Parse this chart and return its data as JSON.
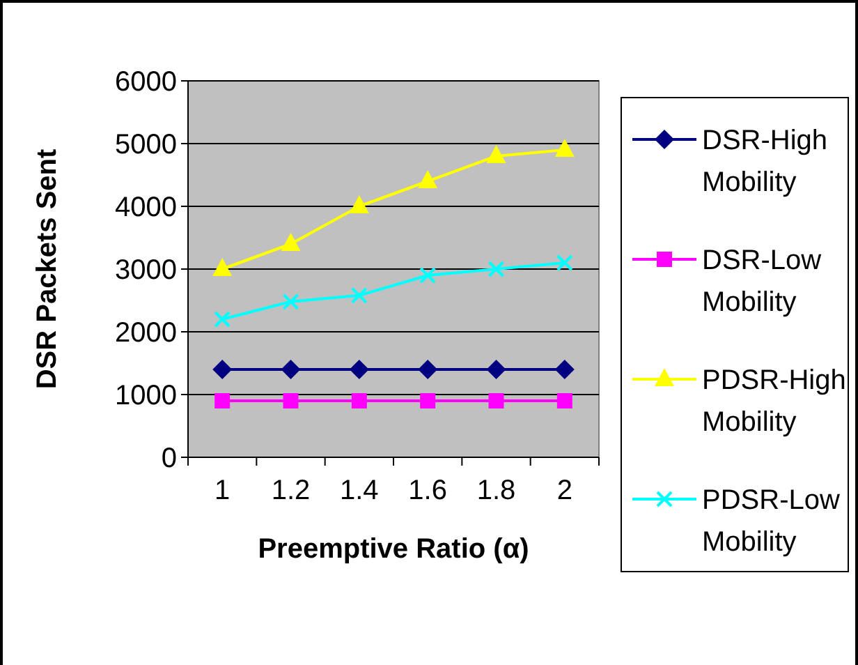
{
  "chart_data": {
    "type": "line",
    "xlabel": "Preemptive Ratio (α)",
    "ylabel": "DSR Packets Sent",
    "categories": [
      "1",
      "1.2",
      "1.4",
      "1.6",
      "1.8",
      "2"
    ],
    "ylim": [
      0,
      6000
    ],
    "yticks": [
      0,
      1000,
      2000,
      3000,
      4000,
      5000,
      6000
    ],
    "grid": "y",
    "legend": "right",
    "line_style": "solid",
    "series": [
      {
        "name": "DSR-High Mobility",
        "color": "#000080",
        "marker": "diamond",
        "values": [
          1400,
          1400,
          1400,
          1400,
          1400,
          1400
        ]
      },
      {
        "name": "DSR-Low Mobility",
        "color": "#ff00ff",
        "marker": "square",
        "values": [
          900,
          900,
          900,
          900,
          900,
          900
        ]
      },
      {
        "name": "PDSR-High Mobility",
        "color": "#ffff00",
        "marker": "triangle",
        "values": [
          3000,
          3400,
          4000,
          4400,
          4800,
          4900
        ]
      },
      {
        "name": "PDSR-Low Mobility",
        "color": "#00ffff",
        "marker": "cross",
        "values": [
          2200,
          2480,
          2580,
          2900,
          3000,
          3100
        ]
      }
    ]
  }
}
